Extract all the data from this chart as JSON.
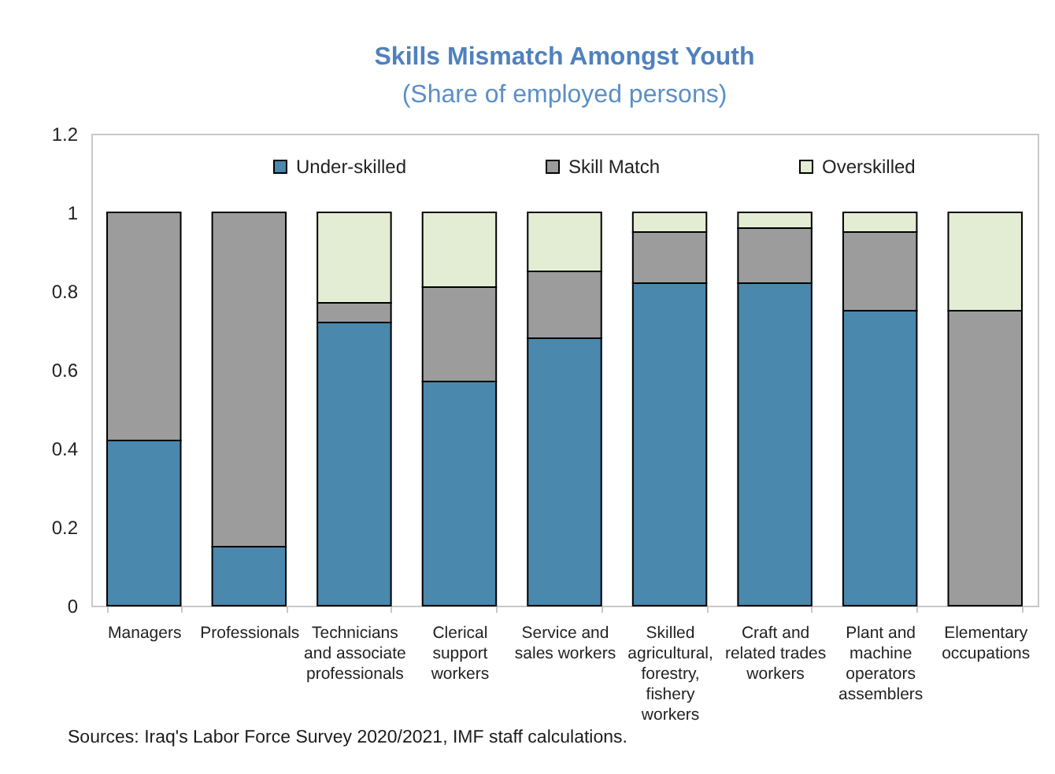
{
  "chart_data": {
    "type": "bar",
    "title": "Skills Mismatch Amongst Youth",
    "subtitle": "(Share of employed persons)",
    "categories": [
      "Managers",
      "Professionals",
      "Technicians and associate professionals",
      "Clerical support workers",
      "Service and sales workers",
      "Skilled agricultural, forestry, fishery workers",
      "Craft and related trades workers",
      "Plant and machine operators assemblers",
      "Elementary occupations"
    ],
    "stacked": true,
    "series": [
      {
        "name": "Under-skilled",
        "color": "#4a88ad",
        "values": [
          0.42,
          0.15,
          0.72,
          0.57,
          0.68,
          0.82,
          0.82,
          0.75,
          0
        ]
      },
      {
        "name": "Skill Match",
        "color": "#9c9c9c",
        "values": [
          0.58,
          0.85,
          0.05,
          0.24,
          0.17,
          0.13,
          0.14,
          0.2,
          0.75
        ]
      },
      {
        "name": "Overskilled",
        "color": "#e2edd3",
        "values": [
          0,
          0,
          0.23,
          0.19,
          0.15,
          0.05,
          0.04,
          0.05,
          0.25
        ]
      }
    ],
    "ylim": [
      0,
      1.2
    ],
    "yticks": [
      0,
      0.2,
      0.4,
      0.6,
      0.8,
      1,
      1.2
    ],
    "legend": "top",
    "annotations": [
      "Sources: Iraq's Labor Force Survey 2020/2021, IMF staff calculations."
    ]
  }
}
